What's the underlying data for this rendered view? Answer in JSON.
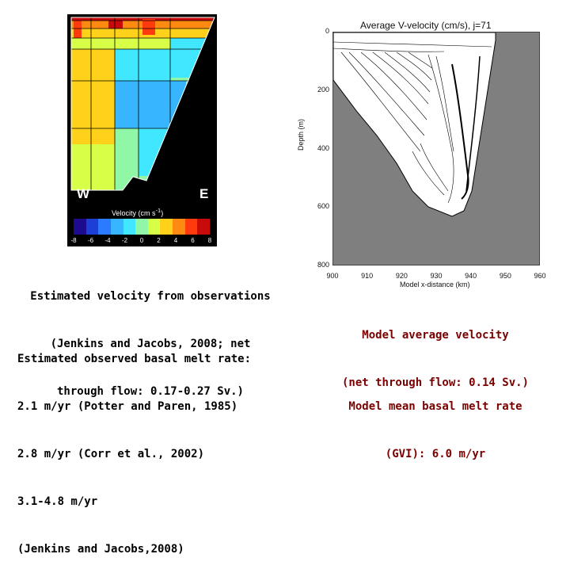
{
  "observed_figure": {
    "label_west": "W",
    "label_east": "E",
    "colorbar_title": "Velocity (cm s",
    "colorbar_title_exp": "-1",
    "colorbar_title_end": ")",
    "colorbar_ticks": [
      "-8",
      "-6",
      "-4",
      "-2",
      "0",
      "2",
      "4",
      "6",
      "8"
    ],
    "colorbar_colors": [
      "#1c0a8f",
      "#1e3fd6",
      "#2b7bff",
      "#37b6ff",
      "#41e6ff",
      "#8ff7a6",
      "#d8ff47",
      "#ffd11a",
      "#ff8a12",
      "#ff3b0d",
      "#c90a0a"
    ]
  },
  "model_figure": {
    "title": "Average V-velocity (cm/s), j=71",
    "y_axis_label": "Depth (m)",
    "x_axis_label": "Model x-distance (km)",
    "y_ticks": [
      "0",
      "200",
      "400",
      "600",
      "800"
    ],
    "x_ticks": [
      "900",
      "910",
      "920",
      "930",
      "940",
      "950",
      "960"
    ]
  },
  "captions": {
    "observed_velocity": [
      "Estimated velocity from observations",
      "(Jenkins and Jacobs, 2008; net",
      "through flow: 0.17-0.27 Sv.)"
    ],
    "observed_melt": [
      "Estimated observed basal melt rate:",
      "2.1 m/yr (Potter and Paren, 1985)",
      "2.8 m/yr (Corr et al., 2002)",
      "3.1-4.8 m/yr",
      "(Jenkins and Jacobs,2008)"
    ],
    "model_velocity": [
      "Model average velocity",
      "(net through flow: 0.14 Sv.)"
    ],
    "model_melt": [
      "Model mean basal melt rate",
      "(GVI): 6.0 m/yr"
    ]
  }
}
